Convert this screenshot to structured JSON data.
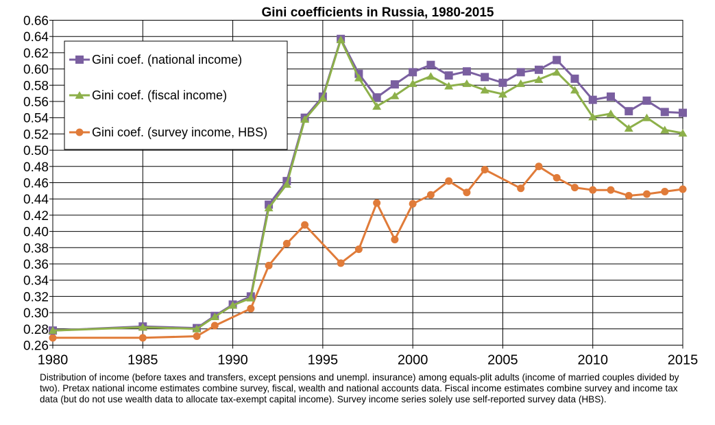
{
  "chart_data": {
    "type": "line",
    "title": "Gini coefficients in Russia, 1980-2015",
    "xlabel": "",
    "ylabel": "",
    "xlim": [
      1980,
      2015
    ],
    "ylim": [
      0.26,
      0.66
    ],
    "x_ticks": [
      "1980",
      "1985",
      "1990",
      "1995",
      "2000",
      "2005",
      "2010",
      "2015"
    ],
    "y_ticks": [
      "0.26",
      "0.28",
      "0.30",
      "0.32",
      "0.34",
      "0.36",
      "0.38",
      "0.40",
      "0.42",
      "0.44",
      "0.46",
      "0.48",
      "0.50",
      "0.52",
      "0.54",
      "0.56",
      "0.58",
      "0.60",
      "0.62",
      "0.64",
      "0.66"
    ],
    "grid": true,
    "legend_position": "top-left",
    "series": [
      {
        "name": "Gini coef. (national income)",
        "color": "#7a5fa0",
        "marker": "square",
        "x": [
          1980,
          1985,
          1988,
          1989,
          1990,
          1991,
          1992,
          1993,
          1994,
          1995,
          1996,
          1997,
          1998,
          1999,
          2000,
          2001,
          2002,
          2003,
          2004,
          2005,
          2006,
          2007,
          2008,
          2009,
          2010,
          2011,
          2012,
          2013,
          2014,
          2015
        ],
        "values": [
          0.278,
          0.283,
          0.281,
          0.296,
          0.31,
          0.32,
          0.433,
          0.462,
          0.54,
          0.566,
          0.637,
          0.594,
          0.565,
          0.581,
          0.596,
          0.605,
          0.592,
          0.597,
          0.59,
          0.583,
          0.596,
          0.599,
          0.611,
          0.588,
          0.562,
          0.566,
          0.548,
          0.561,
          0.547,
          0.546
        ]
      },
      {
        "name": "Gini coef. (fiscal income)",
        "color": "#8db04a",
        "marker": "triangle",
        "x": [
          1980,
          1985,
          1988,
          1989,
          1990,
          1991,
          1992,
          1993,
          1994,
          1995,
          1996,
          1997,
          1998,
          1999,
          2000,
          2001,
          2002,
          2003,
          2004,
          2005,
          2006,
          2007,
          2008,
          2009,
          2010,
          2011,
          2012,
          2013,
          2014,
          2015
        ],
        "values": [
          0.278,
          0.282,
          0.28,
          0.295,
          0.309,
          0.318,
          0.429,
          0.458,
          0.538,
          0.564,
          0.636,
          0.589,
          0.554,
          0.567,
          0.582,
          0.591,
          0.579,
          0.582,
          0.574,
          0.569,
          0.582,
          0.587,
          0.596,
          0.574,
          0.541,
          0.545,
          0.527,
          0.54,
          0.525,
          0.521
        ]
      },
      {
        "name": "Gini coef. (survey income, HBS)",
        "color": "#e07b39",
        "marker": "circle",
        "x": [
          1980,
          1985,
          1988,
          1989,
          1991,
          1992,
          1993,
          1994,
          1996,
          1997,
          1998,
          1999,
          2000,
          2001,
          2002,
          2003,
          2004,
          2006,
          2007,
          2008,
          2009,
          2010,
          2011,
          2012,
          2013,
          2014,
          2015
        ],
        "values": [
          0.269,
          0.269,
          0.271,
          0.284,
          0.305,
          0.358,
          0.385,
          0.408,
          0.361,
          0.378,
          0.435,
          0.39,
          0.434,
          0.445,
          0.462,
          0.448,
          0.476,
          0.453,
          0.48,
          0.466,
          0.454,
          0.451,
          0.451,
          0.444,
          0.446,
          0.449,
          0.452
        ]
      }
    ]
  },
  "caption": "Distribution of income (before taxes and transfers, except pensions and unempl. insurance) among equals-plit adults (income of married couples divided by two). Pretax national income estimates combine survey, fiscal, wealth and national accounts data. Fiscal income estimates combine survey and income tax data (but do not use wealth data to allocate tax-exempt capital income). Survey income series solely use self-reported survey data (HBS)."
}
